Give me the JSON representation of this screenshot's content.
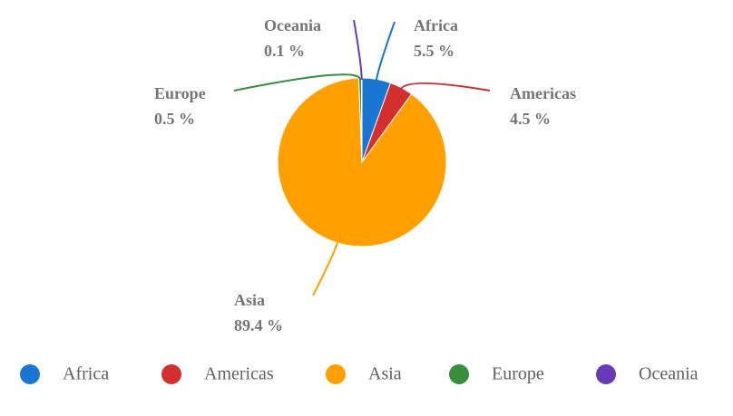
{
  "chart_data": {
    "type": "pie",
    "categories": [
      "Africa",
      "Americas",
      "Asia",
      "Europe",
      "Oceania"
    ],
    "values": [
      5.5,
      4.5,
      89.4,
      0.5,
      0.1
    ],
    "value_labels": [
      "5.5 %",
      "4.5 %",
      "89.4 %",
      "0.5 %",
      "0.1 %"
    ],
    "colors": [
      "#1976d2",
      "#d32f2f",
      "#ffa000",
      "#388e3c",
      "#673ab7"
    ],
    "legend": "bottom"
  }
}
